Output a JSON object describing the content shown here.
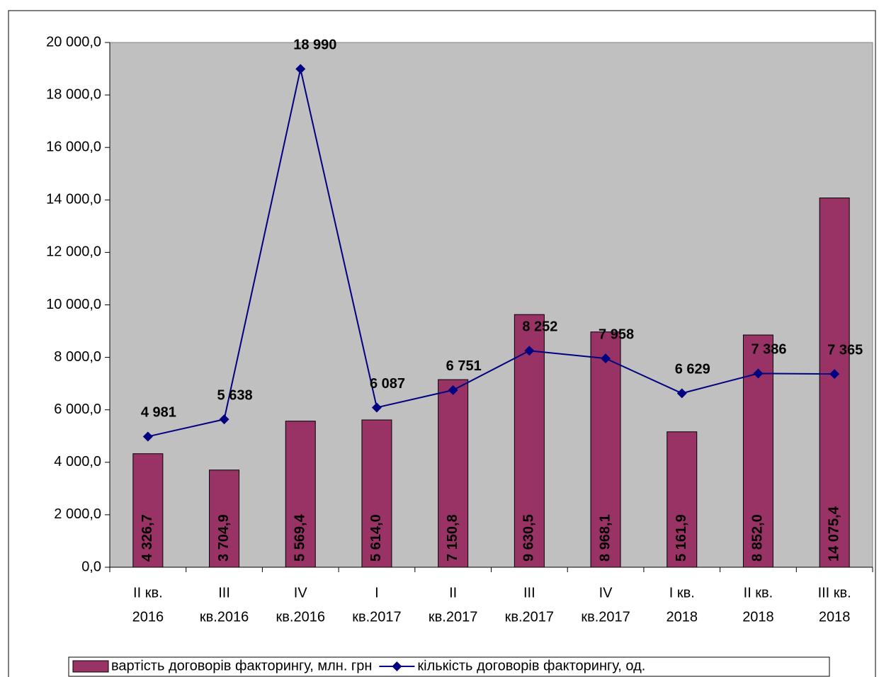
{
  "chart_data": {
    "type": "bar_line",
    "categories": [
      [
        "II кв.",
        "2016"
      ],
      [
        "III",
        "кв.2016"
      ],
      [
        "IV",
        "кв.2016"
      ],
      [
        "I",
        "кв.2017"
      ],
      [
        "II",
        "кв.2017"
      ],
      [
        "III",
        "кв.2017"
      ],
      [
        "IV",
        "кв.2017"
      ],
      [
        "I кв.",
        "2018"
      ],
      [
        "II кв.",
        "2018"
      ],
      [
        "III кв.",
        "2018"
      ]
    ],
    "series": [
      {
        "name": "вартість договорів факторингу, млн. грн",
        "type": "bar",
        "color": "#993366",
        "values": [
          4326.7,
          3704.9,
          5569.4,
          5614.0,
          7150.8,
          9630.5,
          8968.1,
          5161.9,
          8852.0,
          14075.4
        ],
        "value_labels": [
          "4 326,7",
          "3 704,9",
          "5 569,4",
          "5 614,0",
          "7 150,8",
          "9 630,5",
          "8 968,1",
          "5 161,9",
          "8 852,0",
          "14 075,4"
        ]
      },
      {
        "name": "кількість договорів факторингу, од.",
        "type": "line",
        "color": "#000080",
        "values": [
          4981,
          5638,
          18990,
          6087,
          6751,
          8252,
          7958,
          6629,
          7386,
          7365
        ],
        "value_labels": [
          "4 981",
          "5 638",
          "18 990",
          "6 087",
          "6 751",
          "8 252",
          "7 958",
          "6 629",
          "7 386",
          "7 365"
        ]
      }
    ],
    "ylim": [
      0,
      20000
    ],
    "yticks": [
      {
        "value": 0,
        "label": "0,0"
      },
      {
        "value": 2000,
        "label": "2 000,0"
      },
      {
        "value": 4000,
        "label": "4 000,0"
      },
      {
        "value": 6000,
        "label": "6 000,0"
      },
      {
        "value": 8000,
        "label": "8 000,0"
      },
      {
        "value": 10000,
        "label": "10 000,0"
      },
      {
        "value": 12000,
        "label": "12 000,0"
      },
      {
        "value": 14000,
        "label": "14 000,0"
      },
      {
        "value": 16000,
        "label": "16 000,0"
      },
      {
        "value": 18000,
        "label": "18 000,0"
      },
      {
        "value": 20000,
        "label": "20 000,0"
      }
    ],
    "legend": "bottom",
    "plot_background": "#c0c0c0"
  }
}
